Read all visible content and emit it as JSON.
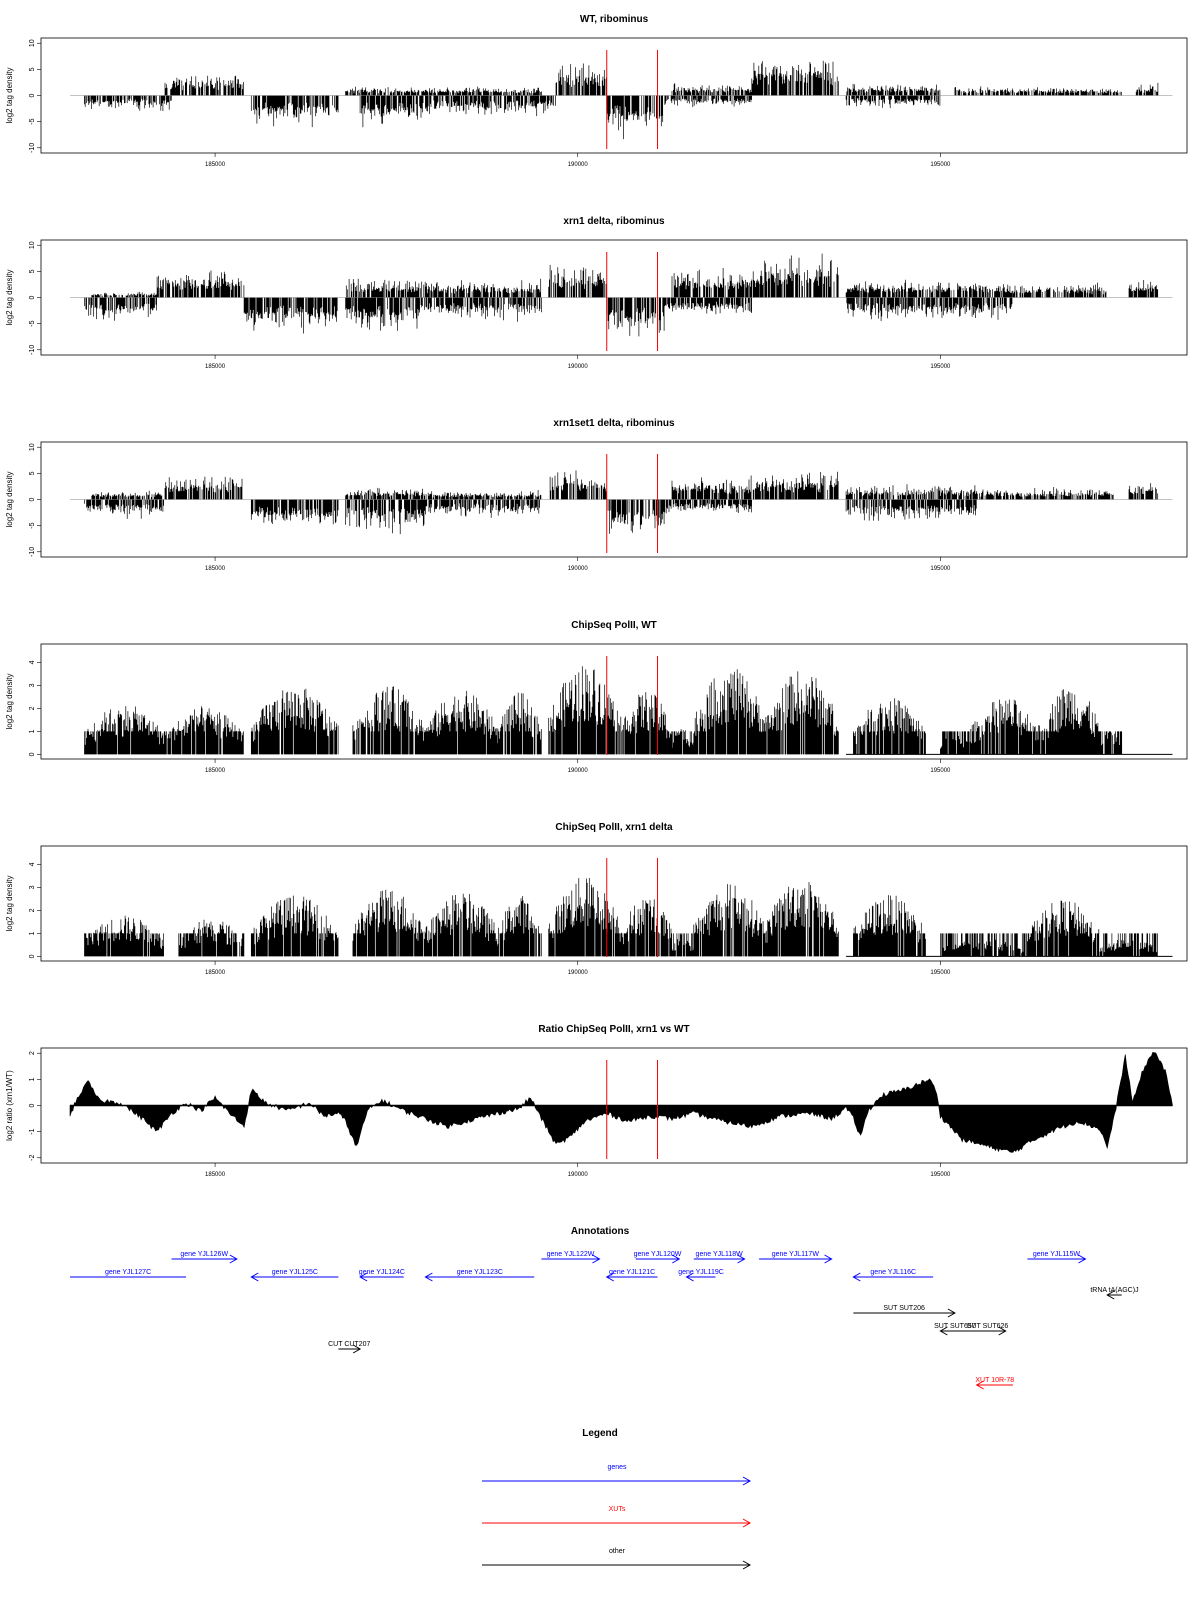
{
  "colors": {
    "gene": "#0000ff",
    "xut": "#ff0000",
    "other": "#000000",
    "marker": "#ff0000",
    "signal": "#000000"
  },
  "x_axis": {
    "range": [
      183000,
      198000
    ],
    "ticks": [
      185000,
      190000,
      195000
    ]
  },
  "markers": [
    190400,
    191100
  ],
  "chart_data": [
    {
      "type": "bar",
      "title": "WT, ribominus",
      "ylabel": "log2 tag density",
      "ylim": [
        -11,
        11
      ],
      "yticks": [
        -10,
        -5,
        0,
        5,
        10
      ],
      "style": "stranded",
      "segments": [
        {
          "x": [
            183200,
            184400
          ],
          "amp": -2.5
        },
        {
          "x": [
            184300,
            185400
          ],
          "amp": 4
        },
        {
          "x": [
            185500,
            186700
          ],
          "amp": -5
        },
        {
          "x": [
            186800,
            187000
          ],
          "amp": 1.5
        },
        {
          "x": [
            187000,
            187900
          ],
          "amp": -5
        },
        {
          "x": [
            187900,
            189700
          ],
          "amp": -3.5
        },
        {
          "x": [
            187000,
            189500
          ],
          "amp": 1.5
        },
        {
          "x": [
            189700,
            190400
          ],
          "amp": 6
        },
        {
          "x": [
            190400,
            191200
          ],
          "amp": -7
        },
        {
          "x": [
            191200,
            192400
          ],
          "amp": -2
        },
        {
          "x": [
            191300,
            192400
          ],
          "amp": 2
        },
        {
          "x": [
            192400,
            193600
          ],
          "amp": 7
        },
        {
          "x": [
            193700,
            195000
          ],
          "amp": -2
        },
        {
          "x": [
            193700,
            195000
          ],
          "amp": 2
        },
        {
          "x": [
            195200,
            197500
          ],
          "amp": 1.5
        },
        {
          "x": [
            197700,
            198000
          ],
          "amp": 2
        }
      ]
    },
    {
      "type": "bar",
      "title": "xrn1 delta, ribominus",
      "ylabel": "log2 tag density",
      "ylim": [
        -11,
        11
      ],
      "yticks": [
        -10,
        -5,
        0,
        5,
        10
      ],
      "style": "stranded",
      "segments": [
        {
          "x": [
            183200,
            184200
          ],
          "amp": -4
        },
        {
          "x": [
            183300,
            184200
          ],
          "amp": 1
        },
        {
          "x": [
            184200,
            185400
          ],
          "amp": 5
        },
        {
          "x": [
            185400,
            186700
          ],
          "amp": -6
        },
        {
          "x": [
            186800,
            187800
          ],
          "amp": -6
        },
        {
          "x": [
            186800,
            187800
          ],
          "amp": 3.5
        },
        {
          "x": [
            187800,
            189500
          ],
          "amp": -4
        },
        {
          "x": [
            187800,
            189500
          ],
          "amp": 3
        },
        {
          "x": [
            189600,
            190400
          ],
          "amp": 6
        },
        {
          "x": [
            190400,
            191200
          ],
          "amp": -7
        },
        {
          "x": [
            191200,
            192400
          ],
          "amp": -3
        },
        {
          "x": [
            191300,
            192500
          ],
          "amp": 5
        },
        {
          "x": [
            192500,
            193600
          ],
          "amp": 7.5
        },
        {
          "x": [
            193700,
            196000
          ],
          "amp": -4
        },
        {
          "x": [
            193700,
            196000
          ],
          "amp": 3
        },
        {
          "x": [
            196000,
            197300
          ],
          "amp": 2.5
        },
        {
          "x": [
            197600,
            198000
          ],
          "amp": 3
        }
      ]
    },
    {
      "type": "bar",
      "title": "xrn1set1 delta, ribominus",
      "ylabel": "log2 tag density",
      "ylim": [
        -11,
        11
      ],
      "yticks": [
        -10,
        -5,
        0,
        5,
        10
      ],
      "style": "stranded",
      "segments": [
        {
          "x": [
            183200,
            184300
          ],
          "amp": -3
        },
        {
          "x": [
            183300,
            184300
          ],
          "amp": 1.5
        },
        {
          "x": [
            184300,
            185400
          ],
          "amp": 4.5
        },
        {
          "x": [
            185500,
            186700
          ],
          "amp": -5
        },
        {
          "x": [
            186800,
            187900
          ],
          "amp": -5.5
        },
        {
          "x": [
            186800,
            187900
          ],
          "amp": 2
        },
        {
          "x": [
            187900,
            189500
          ],
          "amp": -3
        },
        {
          "x": [
            187900,
            189500
          ],
          "amp": 1.5
        },
        {
          "x": [
            189600,
            190400
          ],
          "amp": 5
        },
        {
          "x": [
            190400,
            191200
          ],
          "amp": -7
        },
        {
          "x": [
            191200,
            192400
          ],
          "amp": -2.5
        },
        {
          "x": [
            191300,
            192500
          ],
          "amp": 4
        },
        {
          "x": [
            192500,
            193600
          ],
          "amp": 5
        },
        {
          "x": [
            193700,
            195500
          ],
          "amp": -4
        },
        {
          "x": [
            193700,
            195500
          ],
          "amp": 2.5
        },
        {
          "x": [
            195500,
            197400
          ],
          "amp": 2
        },
        {
          "x": [
            197600,
            198000
          ],
          "amp": 3
        }
      ]
    },
    {
      "type": "bar",
      "title": "ChipSeq PolII, WT",
      "ylabel": "log2 tag density",
      "ylim": [
        -0.2,
        4.8
      ],
      "yticks": [
        0,
        1,
        2,
        3,
        4
      ],
      "style": "positive",
      "segments": [
        {
          "x": [
            183200,
            184300
          ],
          "amp": 2.2
        },
        {
          "x": [
            184300,
            185400
          ],
          "amp": 2.1
        },
        {
          "x": [
            185500,
            186700
          ],
          "amp": 3
        },
        {
          "x": [
            186900,
            187900
          ],
          "amp": 3
        },
        {
          "x": [
            187900,
            188900
          ],
          "amp": 2.8
        },
        {
          "x": [
            188900,
            189500
          ],
          "amp": 2.7
        },
        {
          "x": [
            189600,
            190600
          ],
          "amp": 4
        },
        {
          "x": [
            190600,
            191300
          ],
          "amp": 2.8
        },
        {
          "x": [
            191300,
            191600
          ],
          "amp": 1.2
        },
        {
          "x": [
            191600,
            192600
          ],
          "amp": 3.8
        },
        {
          "x": [
            192600,
            193600
          ],
          "amp": 3.7
        },
        {
          "x": [
            193800,
            194800
          ],
          "amp": 2.5
        },
        {
          "x": [
            195000,
            195400
          ],
          "amp": 1
        },
        {
          "x": [
            195400,
            196400
          ],
          "amp": 2.5
        },
        {
          "x": [
            196400,
            197200
          ],
          "amp": 3.1
        },
        {
          "x": [
            197200,
            197500
          ],
          "amp": 1
        }
      ]
    },
    {
      "type": "bar",
      "title": "ChipSeq PolII, xrn1 delta",
      "ylabel": "log2 tag density",
      "ylim": [
        -0.2,
        4.8
      ],
      "yticks": [
        0,
        1,
        2,
        3,
        4
      ],
      "style": "positive",
      "segments": [
        {
          "x": [
            183200,
            184300
          ],
          "amp": 1.8
        },
        {
          "x": [
            184500,
            185400
          ],
          "amp": 1.7
        },
        {
          "x": [
            185500,
            186700
          ],
          "amp": 2.7
        },
        {
          "x": [
            186900,
            187900
          ],
          "amp": 3
        },
        {
          "x": [
            187900,
            188900
          ],
          "amp": 2.8
        },
        {
          "x": [
            188900,
            189500
          ],
          "amp": 2.7
        },
        {
          "x": [
            189600,
            190600
          ],
          "amp": 3.5
        },
        {
          "x": [
            190600,
            191300
          ],
          "amp": 2.7
        },
        {
          "x": [
            191300,
            191600
          ],
          "amp": 1
        },
        {
          "x": [
            191600,
            192600
          ],
          "amp": 3.2
        },
        {
          "x": [
            192600,
            193600
          ],
          "amp": 3.5
        },
        {
          "x": [
            193800,
            194800
          ],
          "amp": 2.7
        },
        {
          "x": [
            195000,
            196200
          ],
          "amp": 0.8
        },
        {
          "x": [
            196200,
            197200
          ],
          "amp": 2.5
        },
        {
          "x": [
            197200,
            198000
          ],
          "amp": 0.8
        }
      ]
    },
    {
      "type": "area",
      "title": "Ratio ChipSeq PolII, xrn1 vs WT",
      "ylabel": "log2 ratio (xrn1/WT)",
      "ylim": [
        -2.2,
        2.2
      ],
      "yticks": [
        -2,
        -1,
        0,
        1,
        2
      ],
      "style": "ratio",
      "points": [
        [
          183000,
          -0.4
        ],
        [
          183100,
          0.3
        ],
        [
          183250,
          0.9
        ],
        [
          183400,
          0.2
        ],
        [
          183700,
          0.1
        ],
        [
          184000,
          -0.5
        ],
        [
          184200,
          -1
        ],
        [
          184400,
          -0.3
        ],
        [
          184600,
          0.1
        ],
        [
          184800,
          -0.2
        ],
        [
          185000,
          0.3
        ],
        [
          185200,
          -0.3
        ],
        [
          185400,
          -0.8
        ],
        [
          185500,
          0.6
        ],
        [
          185700,
          0.1
        ],
        [
          186000,
          -0.2
        ],
        [
          186300,
          0.1
        ],
        [
          186500,
          -0.4
        ],
        [
          186700,
          -0.3
        ],
        [
          186800,
          -0.6
        ],
        [
          186950,
          -1.6
        ],
        [
          187100,
          -0.2
        ],
        [
          187300,
          0.2
        ],
        [
          187600,
          -0.2
        ],
        [
          187900,
          -0.5
        ],
        [
          188200,
          -0.8
        ],
        [
          188600,
          -0.5
        ],
        [
          188900,
          -0.3
        ],
        [
          189200,
          -0.1
        ],
        [
          189350,
          0.3
        ],
        [
          189500,
          -0.5
        ],
        [
          189700,
          -1.5
        ],
        [
          189900,
          -1.2
        ],
        [
          190100,
          -0.6
        ],
        [
          190400,
          -0.3
        ],
        [
          190700,
          -0.6
        ],
        [
          191000,
          -0.4
        ],
        [
          191300,
          -0.5
        ],
        [
          191600,
          -0.3
        ],
        [
          192000,
          -0.6
        ],
        [
          192400,
          -0.8
        ],
        [
          192800,
          -0.4
        ],
        [
          193200,
          -0.3
        ],
        [
          193500,
          -0.5
        ],
        [
          193700,
          -0.1
        ],
        [
          193800,
          -0.5
        ],
        [
          193900,
          -1.2
        ],
        [
          194000,
          -0.2
        ],
        [
          194200,
          0.4
        ],
        [
          194500,
          0.6
        ],
        [
          194850,
          1
        ],
        [
          194950,
          0.5
        ],
        [
          195000,
          -0.4
        ],
        [
          195300,
          -1.3
        ],
        [
          195700,
          -1.6
        ],
        [
          196000,
          -1.8
        ],
        [
          196300,
          -1.3
        ],
        [
          196600,
          -0.9
        ],
        [
          196900,
          -0.6
        ],
        [
          197200,
          -0.9
        ],
        [
          197300,
          -1.6
        ],
        [
          197400,
          -0.4
        ],
        [
          197550,
          1.9
        ],
        [
          197650,
          0.1
        ],
        [
          197800,
          1.4
        ],
        [
          197950,
          2.1
        ],
        [
          198100,
          1.3
        ],
        [
          198200,
          0
        ]
      ]
    }
  ],
  "annotations": {
    "title": "Annotations",
    "items": [
      {
        "label": "gene YJL127C",
        "x0": 183000,
        "x1": 184600,
        "dir": "none",
        "row": 0,
        "type": "gene"
      },
      {
        "label": "gene YJL126W",
        "x0": 184400,
        "x1": 185300,
        "dir": "right",
        "row": -1,
        "type": "gene"
      },
      {
        "label": "gene YJL125C",
        "x0": 185500,
        "x1": 186700,
        "dir": "left",
        "row": 0,
        "type": "gene"
      },
      {
        "label": "gene YJL124C",
        "x0": 187000,
        "x1": 187600,
        "dir": "left",
        "row": 0,
        "type": "gene"
      },
      {
        "label": "gene YJL123C",
        "x0": 187900,
        "x1": 189400,
        "dir": "left",
        "row": 0,
        "type": "gene"
      },
      {
        "label": "gene YJL122W",
        "x0": 189500,
        "x1": 190300,
        "dir": "right",
        "row": -1,
        "type": "gene"
      },
      {
        "label": "gene YJL121C",
        "x0": 190400,
        "x1": 191100,
        "dir": "left",
        "row": 0,
        "type": "gene"
      },
      {
        "label": "gene YJL120W",
        "x0": 190800,
        "x1": 191400,
        "dir": "right",
        "row": -1,
        "type": "gene"
      },
      {
        "label": "gene YJL119C",
        "x0": 191500,
        "x1": 191900,
        "dir": "left",
        "row": 0,
        "type": "gene"
      },
      {
        "label": "gene YJL118W",
        "x0": 191600,
        "x1": 192300,
        "dir": "right",
        "row": -1,
        "type": "gene"
      },
      {
        "label": "gene YJL117W",
        "x0": 192500,
        "x1": 193500,
        "dir": "right",
        "row": -1,
        "type": "gene"
      },
      {
        "label": "gene YJL116C",
        "x0": 193800,
        "x1": 194900,
        "dir": "left",
        "row": 0,
        "type": "gene"
      },
      {
        "label": "gene YJL115W",
        "x0": 196200,
        "x1": 197000,
        "dir": "right",
        "row": -1,
        "type": "gene"
      },
      {
        "label": "tRNA tA(AGC)J",
        "x0": 197300,
        "x1": 197500,
        "dir": "left",
        "row": 1,
        "type": "other"
      },
      {
        "label": "SUT SUT206",
        "x0": 193800,
        "x1": 195200,
        "dir": "right",
        "row": 2,
        "type": "other"
      },
      {
        "label": "SUT SUT657",
        "x0": 195000,
        "x1": 195400,
        "dir": "left",
        "row": 3,
        "type": "other"
      },
      {
        "label": "SUT SUT626",
        "x0": 195400,
        "x1": 195900,
        "dir": "right",
        "row": 3,
        "type": "other"
      },
      {
        "label": "CUT CUT207",
        "x0": 186700,
        "x1": 187000,
        "dir": "right",
        "row": 4,
        "type": "other"
      },
      {
        "label": "XUT 10R-78",
        "x0": 195500,
        "x1": 196000,
        "dir": "left",
        "row": 6,
        "type": "xut"
      }
    ]
  },
  "legend": {
    "title": "Legend",
    "items": [
      {
        "label": "genes",
        "type": "gene"
      },
      {
        "label": "XUTs",
        "type": "xut"
      },
      {
        "label": "other",
        "type": "other"
      }
    ]
  }
}
